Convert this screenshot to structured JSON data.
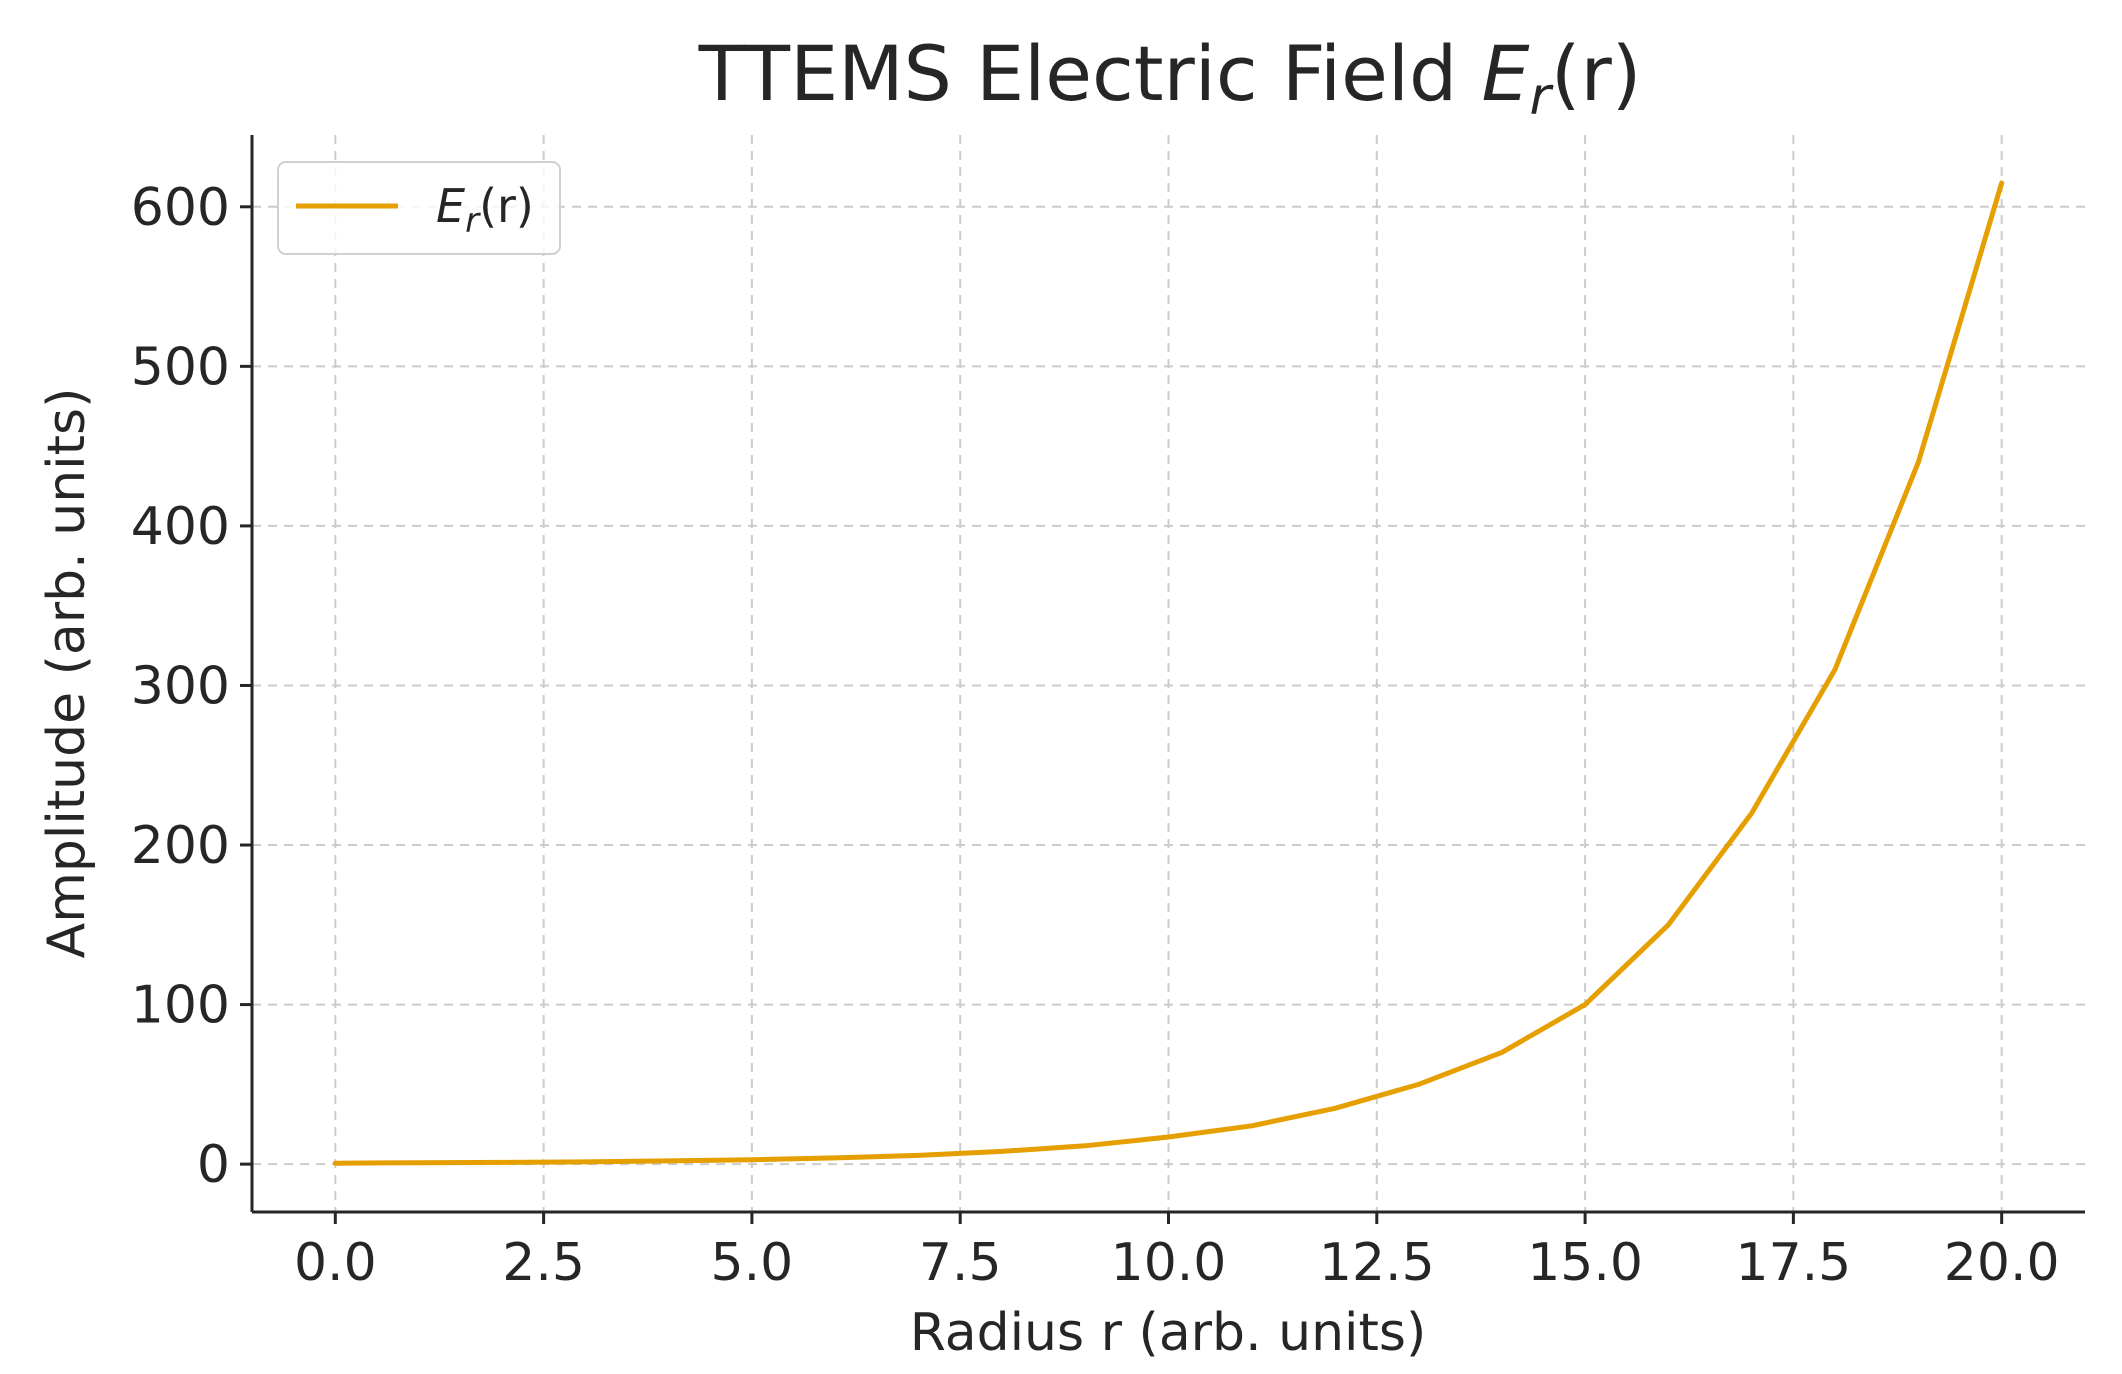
{
  "chart_data": {
    "type": "line",
    "title": "TTEMS Electric Field E_r(r)",
    "title_parts": {
      "text": "TTEMS Electric Field ",
      "symbol": "E",
      "sub": "r",
      "arg": "(r)"
    },
    "xlabel": "Radius r (arb. units)",
    "ylabel": "Amplitude (arb. units)",
    "xlim": [
      -1,
      21
    ],
    "ylim": [
      -30,
      645
    ],
    "xticks": [
      "0.0",
      "2.5",
      "5.0",
      "7.5",
      "10.0",
      "12.5",
      "15.0",
      "17.5",
      "20.0"
    ],
    "yticks": [
      "0",
      "100",
      "200",
      "300",
      "400",
      "500",
      "600"
    ],
    "grid": true,
    "legend_position": "upper-left",
    "series": [
      {
        "name": "E_r(r)",
        "legend_parts": {
          "symbol": "E",
          "sub": "r",
          "arg": "(r)"
        },
        "color": "#e69f00",
        "x": [
          0,
          1,
          2,
          3,
          4,
          5,
          6,
          7,
          8,
          9,
          10,
          11,
          12,
          13,
          14,
          15,
          16,
          17,
          18,
          19,
          20
        ],
        "y": [
          0.6,
          0.9,
          1.1,
          1.4,
          2,
          2.8,
          3.9,
          5.5,
          8,
          11.5,
          17,
          24,
          35,
          50,
          70,
          100,
          150,
          220,
          310,
          440,
          615
        ]
      }
    ]
  }
}
